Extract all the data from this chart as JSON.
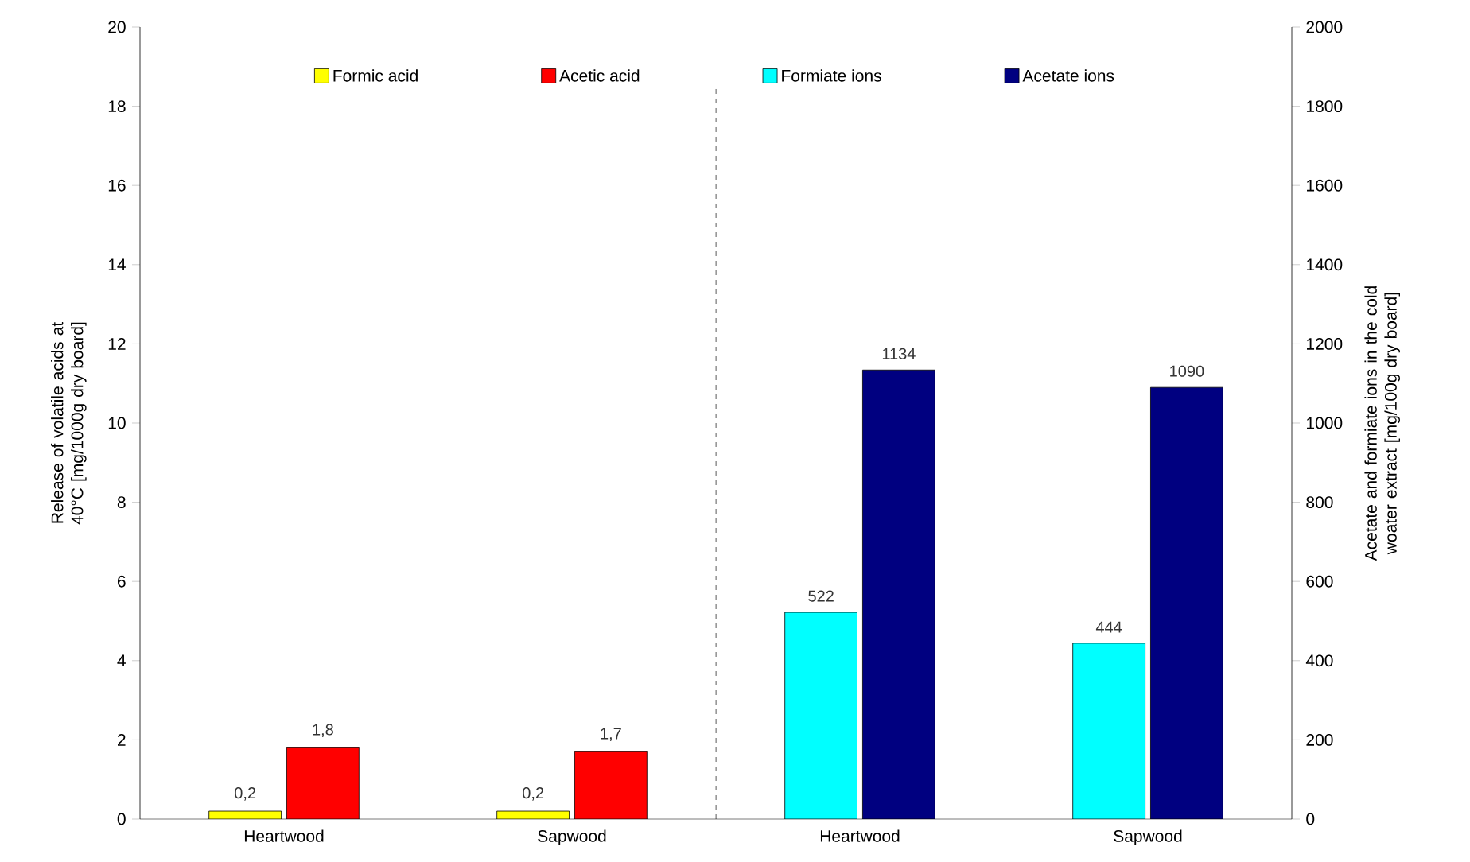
{
  "chart_data": {
    "type": "bar",
    "categories": [
      "Heartwood",
      "Sapwood",
      "Heartwood",
      "Sapwood"
    ],
    "ylabel": "Release of volatile acids at 40°C [mg/1000g dry board]",
    "y2label": "Acetate and formiate ions in the cold woater extract [mg/100g dry board]",
    "ylim": [
      0,
      20
    ],
    "yticks": [
      0,
      2,
      4,
      6,
      8,
      10,
      12,
      14,
      16,
      18,
      20
    ],
    "y2lim": [
      0,
      2000
    ],
    "y2ticks": [
      0,
      200,
      400,
      600,
      800,
      1000,
      1200,
      1400,
      1600,
      1800,
      2000
    ],
    "series": [
      {
        "name": "Formic acid",
        "color": "#ffff00",
        "values": [
          0.2,
          0.2,
          null,
          null
        ],
        "value_labels": [
          "0,2",
          "0,2",
          null,
          null
        ]
      },
      {
        "name": "Acetic acid",
        "color": "#ff0000",
        "values": [
          1.8,
          1.7,
          null,
          null
        ],
        "value_labels": [
          "1,8",
          "1,7",
          null,
          null
        ]
      },
      {
        "name": "Formiate ions",
        "color": "#00ffff",
        "axis": "y2",
        "values": [
          null,
          null,
          522,
          444
        ],
        "value_labels": [
          null,
          null,
          "522",
          "444"
        ]
      },
      {
        "name": "Acetate ions",
        "color": "#000080",
        "axis": "y2",
        "values": [
          null,
          null,
          1134,
          1090
        ],
        "value_labels": [
          null,
          null,
          "1134",
          "1090"
        ]
      }
    ],
    "legend": "top",
    "grid": false
  }
}
